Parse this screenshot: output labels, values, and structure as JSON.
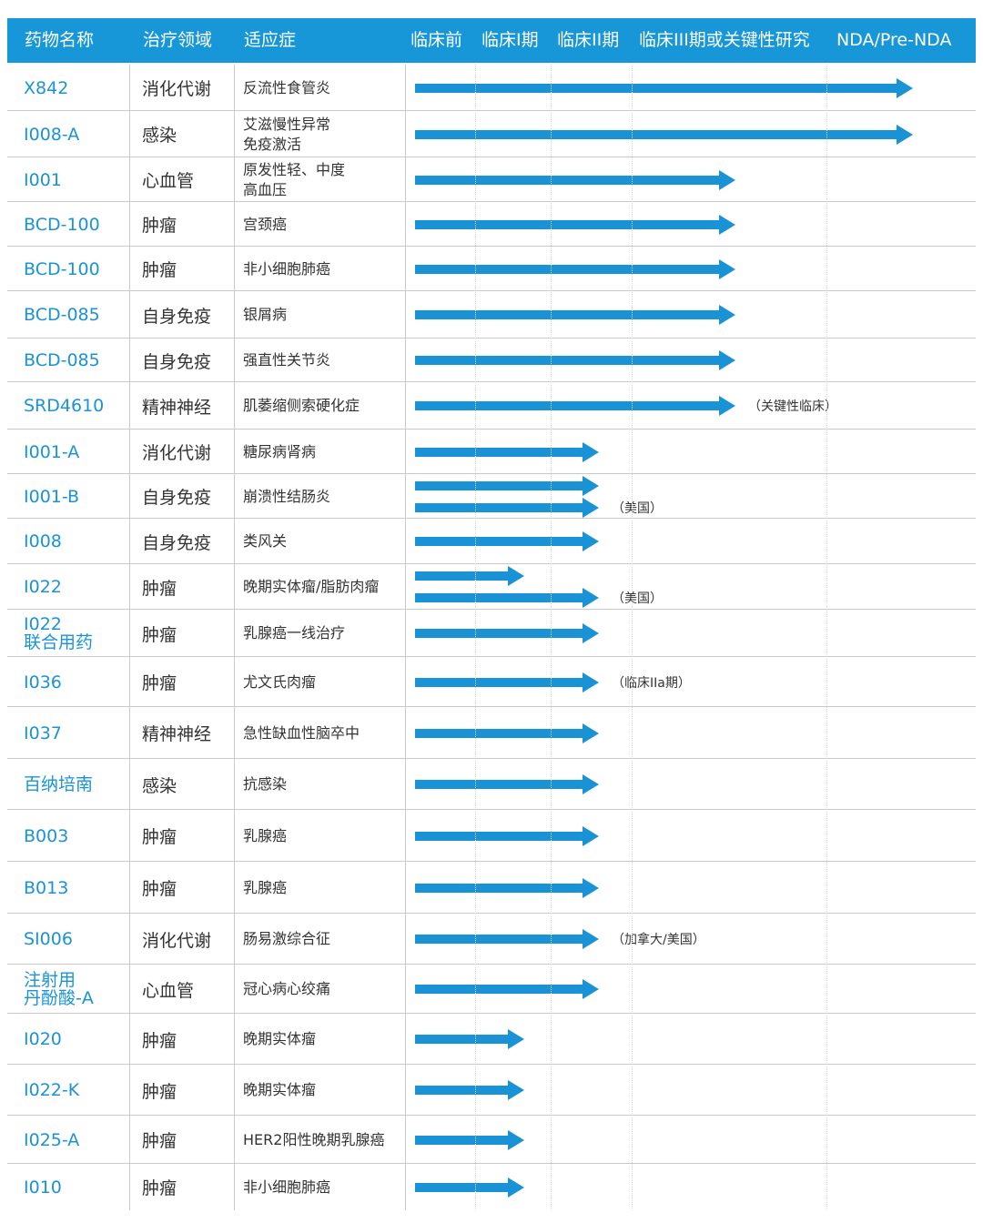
{
  "colors": {
    "header_bg": "#1796d8",
    "accent": "#1a93d6",
    "text": "#333333"
  },
  "columns": {
    "drug": "药物名称",
    "area": "治疗领域",
    "indication": "适应症",
    "phases": [
      "临床前",
      "临床I期",
      "临床II期",
      "临床III期或关键性研究",
      "NDA/Pre-NDA"
    ]
  },
  "rows": [
    {
      "name": [
        "X842"
      ],
      "area": "消化代谢",
      "indication": [
        "反流性食管炎"
      ],
      "arrows": [
        5
      ],
      "note": ""
    },
    {
      "name": [
        "I008-A"
      ],
      "area": "感染",
      "indication": [
        "艾滋慢性异常",
        "免疫激活"
      ],
      "arrows": [
        5
      ],
      "note": ""
    },
    {
      "name": [
        "I001"
      ],
      "area": "心血管",
      "indication": [
        "原发性轻、中度",
        "高血压"
      ],
      "arrows": [
        4
      ],
      "note": ""
    },
    {
      "name": [
        "BCD-100"
      ],
      "area": "肿瘤",
      "indication": [
        "宫颈癌"
      ],
      "arrows": [
        4
      ],
      "note": ""
    },
    {
      "name": [
        "BCD-100"
      ],
      "area": "肿瘤",
      "indication": [
        "非小细胞肺癌"
      ],
      "arrows": [
        4
      ],
      "note": ""
    },
    {
      "name": [
        "BCD-085"
      ],
      "area": "自身免疫",
      "indication": [
        "银屑病"
      ],
      "arrows": [
        4
      ],
      "note": ""
    },
    {
      "name": [
        "BCD-085"
      ],
      "area": "自身免疫",
      "indication": [
        "强直性关节炎"
      ],
      "arrows": [
        4
      ],
      "note": ""
    },
    {
      "name": [
        "SRD4610"
      ],
      "area": "精神神经",
      "indication": [
        "肌萎缩侧索硬化症"
      ],
      "arrows": [
        4
      ],
      "note": "（关键性临床）"
    },
    {
      "name": [
        "I001-A"
      ],
      "area": "消化代谢",
      "indication": [
        "糖尿病肾病"
      ],
      "arrows": [
        3
      ],
      "note": ""
    },
    {
      "name": [
        "I001-B"
      ],
      "area": "自身免疫",
      "indication": [
        "崩溃性结肠炎"
      ],
      "arrows": [
        3,
        3
      ],
      "note": "（美国）"
    },
    {
      "name": [
        "I008"
      ],
      "area": "自身免疫",
      "indication": [
        "类风关"
      ],
      "arrows": [
        3
      ],
      "note": ""
    },
    {
      "name": [
        "I022"
      ],
      "area": "肿瘤",
      "indication": [
        "晚期实体瘤/脂肪肉瘤"
      ],
      "arrows": [
        2,
        3
      ],
      "note": "（美国）"
    },
    {
      "name": [
        "I022",
        "联合用药"
      ],
      "area": "肿瘤",
      "indication": [
        "乳腺癌一线治疗"
      ],
      "arrows": [
        3
      ],
      "note": ""
    },
    {
      "name": [
        "I036"
      ],
      "area": "肿瘤",
      "indication": [
        "尤文氏肉瘤"
      ],
      "arrows": [
        3
      ],
      "note": "（临床IIa期）"
    },
    {
      "name": [
        "I037"
      ],
      "area": "精神神经",
      "indication": [
        "急性缺血性脑卒中"
      ],
      "arrows": [
        3
      ],
      "note": ""
    },
    {
      "name": [
        "百纳培南"
      ],
      "area": "感染",
      "indication": [
        "抗感染"
      ],
      "arrows": [
        3
      ],
      "note": ""
    },
    {
      "name": [
        "B003"
      ],
      "area": "肿瘤",
      "indication": [
        "乳腺癌"
      ],
      "arrows": [
        3
      ],
      "note": ""
    },
    {
      "name": [
        "B013"
      ],
      "area": "肿瘤",
      "indication": [
        "乳腺癌"
      ],
      "arrows": [
        3
      ],
      "note": ""
    },
    {
      "name": [
        "SI006"
      ],
      "area": "消化代谢",
      "indication": [
        "肠易激综合征"
      ],
      "arrows": [
        3
      ],
      "note": "（加拿大/美国）"
    },
    {
      "name": [
        "注射用",
        "丹酚酸-A"
      ],
      "area": "心血管",
      "indication": [
        "冠心病心绞痛"
      ],
      "arrows": [
        3
      ],
      "note": ""
    },
    {
      "name": [
        "I020"
      ],
      "area": "肿瘤",
      "indication": [
        "晚期实体瘤"
      ],
      "arrows": [
        2
      ],
      "note": ""
    },
    {
      "name": [
        "I022-K"
      ],
      "area": "肿瘤",
      "indication": [
        "晚期实体瘤"
      ],
      "arrows": [
        2
      ],
      "note": ""
    },
    {
      "name": [
        "I025-A"
      ],
      "area": "肿瘤",
      "indication": [
        "HER2阳性晚期乳腺癌"
      ],
      "arrows": [
        2
      ],
      "note": ""
    },
    {
      "name": [
        "I010"
      ],
      "area": "肿瘤",
      "indication": [
        "非小细胞肺癌"
      ],
      "arrows": [
        2
      ],
      "note": ""
    }
  ]
}
